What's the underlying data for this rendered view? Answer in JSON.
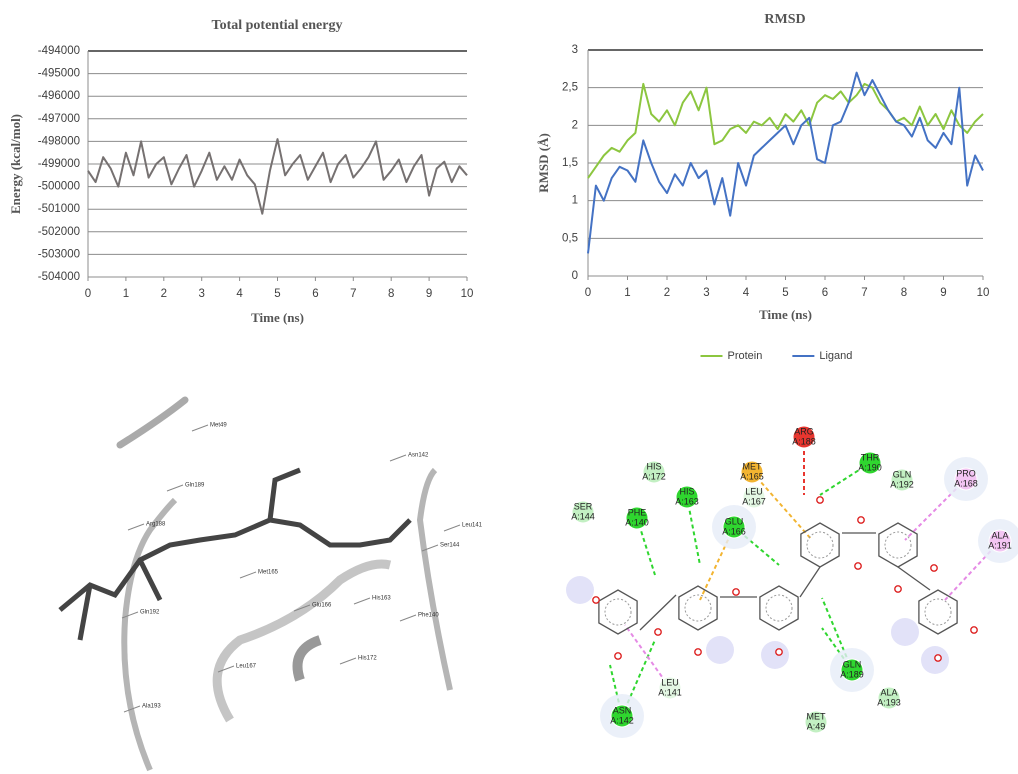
{
  "chart_data": [
    {
      "type": "line",
      "title": "Total potential energy",
      "xlabel": "Time (ns)",
      "ylabel": "Energy (kcal/mol)",
      "xlim": [
        0,
        10
      ],
      "xticks": [
        0,
        1,
        2,
        3,
        4,
        5,
        6,
        7,
        8,
        9,
        10
      ],
      "ylim": [
        -504000,
        -494000
      ],
      "yticks": [
        -504000,
        -503000,
        -502000,
        -501000,
        -500000,
        -499000,
        -498000,
        -497000,
        -496000,
        -495000,
        -494000
      ],
      "grid": true,
      "x": [
        0,
        0.2,
        0.4,
        0.6,
        0.8,
        1,
        1.2,
        1.4,
        1.6,
        1.8,
        2,
        2.2,
        2.4,
        2.6,
        2.8,
        3,
        3.2,
        3.4,
        3.6,
        3.8,
        4,
        4.2,
        4.4,
        4.6,
        4.8,
        5,
        5.2,
        5.4,
        5.6,
        5.8,
        6,
        6.2,
        6.4,
        6.6,
        6.8,
        7,
        7.2,
        7.4,
        7.6,
        7.8,
        8,
        8.2,
        8.4,
        8.6,
        8.8,
        9,
        9.2,
        9.4,
        9.6,
        9.8,
        10
      ],
      "series": [
        {
          "color": "#767171",
          "values": [
            -499300,
            -499800,
            -498700,
            -499200,
            -500000,
            -498500,
            -499500,
            -498000,
            -499600,
            -499000,
            -498700,
            -499900,
            -499200,
            -498600,
            -500000,
            -499300,
            -498500,
            -499700,
            -499100,
            -499700,
            -498800,
            -499500,
            -499900,
            -501200,
            -499300,
            -497900,
            -499500,
            -499000,
            -498600,
            -499700,
            -499100,
            -498500,
            -499800,
            -499000,
            -498600,
            -499600,
            -499200,
            -498700,
            -498000,
            -499700,
            -499300,
            -498800,
            -499800,
            -499100,
            -498600,
            -500400,
            -499200,
            -498900,
            -499800,
            -499100,
            -499500
          ]
        }
      ]
    },
    {
      "type": "line",
      "title": "RMSD",
      "xlabel": "Time (ns)",
      "ylabel": "RMSD (Å)",
      "xlim": [
        0,
        10
      ],
      "xticks": [
        0,
        1,
        2,
        3,
        4,
        5,
        6,
        7,
        8,
        9,
        10
      ],
      "ylim": [
        0,
        3
      ],
      "yticks": [
        0,
        {
          "value": 0.5,
          "label": "0,5"
        },
        1,
        {
          "value": 1.5,
          "label": "1,5"
        },
        2,
        {
          "value": 2.5,
          "label": "2,5"
        },
        3
      ],
      "grid": true,
      "legend": "bottom",
      "x": [
        0,
        0.2,
        0.4,
        0.6,
        0.8,
        1,
        1.2,
        1.4,
        1.6,
        1.8,
        2,
        2.2,
        2.4,
        2.6,
        2.8,
        3,
        3.2,
        3.4,
        3.6,
        3.8,
        4,
        4.2,
        4.4,
        4.6,
        4.8,
        5,
        5.2,
        5.4,
        5.6,
        5.8,
        6,
        6.2,
        6.4,
        6.6,
        6.8,
        7,
        7.2,
        7.4,
        7.6,
        7.8,
        8,
        8.2,
        8.4,
        8.6,
        8.8,
        9,
        9.2,
        9.4,
        9.6,
        9.8,
        10
      ],
      "series": [
        {
          "name": "Protein",
          "color": "#8cc63f",
          "values": [
            1.3,
            1.45,
            1.6,
            1.7,
            1.65,
            1.8,
            1.9,
            2.55,
            2.15,
            2.05,
            2.2,
            2.0,
            2.3,
            2.45,
            2.2,
            2.5,
            1.75,
            1.8,
            1.95,
            2.0,
            1.9,
            2.05,
            2.0,
            2.1,
            1.95,
            2.15,
            2.05,
            2.2,
            2.0,
            2.3,
            2.4,
            2.35,
            2.45,
            2.3,
            2.4,
            2.55,
            2.5,
            2.3,
            2.2,
            2.05,
            2.1,
            2.0,
            2.25,
            2.0,
            2.15,
            1.95,
            2.2,
            2.0,
            1.9,
            2.05,
            2.15
          ]
        },
        {
          "name": "Ligand",
          "color": "#4472c4",
          "values": [
            0.3,
            1.2,
            1.0,
            1.3,
            1.45,
            1.4,
            1.25,
            1.8,
            1.5,
            1.25,
            1.1,
            1.35,
            1.2,
            1.5,
            1.3,
            1.4,
            0.95,
            1.3,
            0.8,
            1.5,
            1.2,
            1.6,
            1.7,
            1.8,
            1.9,
            2.0,
            1.75,
            2.0,
            2.1,
            1.55,
            1.5,
            2.0,
            2.05,
            2.3,
            2.7,
            2.4,
            2.6,
            2.4,
            2.2,
            2.05,
            2.0,
            1.85,
            2.1,
            1.8,
            1.7,
            1.9,
            1.75,
            2.5,
            1.2,
            1.6,
            1.4
          ]
        }
      ]
    }
  ],
  "structure_view": {
    "labels": [
      "Met49",
      "Asn142",
      "Gln189",
      "Leu141",
      "Ser144",
      "Arg188",
      "Met165",
      "Glu166",
      "His163",
      "Gln192",
      "Phe140",
      "His172",
      "Leu167",
      "Ala193"
    ]
  },
  "interaction_diagram": {
    "residues": [
      {
        "name": "ARG",
        "id": "A:188",
        "color": "#e8362f"
      },
      {
        "name": "THR",
        "id": "A:190",
        "color": "#2fd62f"
      },
      {
        "name": "MET",
        "id": "A:165",
        "color": "#f2b431"
      },
      {
        "name": "HIS",
        "id": "A:172",
        "color": "#c3f0c3"
      },
      {
        "name": "GLN",
        "id": "A:192",
        "color": "#c3f0c3"
      },
      {
        "name": "PRO",
        "id": "A:168",
        "color": "#f3c5f3"
      },
      {
        "name": "LEU",
        "id": "A:167",
        "color": "#e3f7e3"
      },
      {
        "name": "HIS",
        "id": "A:163",
        "color": "#2fd62f"
      },
      {
        "name": "SER",
        "id": "A:144",
        "color": "#c3f0c3"
      },
      {
        "name": "PHE",
        "id": "A:140",
        "color": "#2fd62f"
      },
      {
        "name": "GLU",
        "id": "A:166",
        "color": "#2fd62f"
      },
      {
        "name": "ALA",
        "id": "A:191",
        "color": "#f3c5f3"
      },
      {
        "name": "GLN",
        "id": "A:189",
        "color": "#2fd62f"
      },
      {
        "name": "ASN",
        "id": "A:142",
        "color": "#2fd62f"
      },
      {
        "name": "LEU",
        "id": "A:141",
        "color": "#e3f7e3"
      },
      {
        "name": "ALA",
        "id": "A:193",
        "color": "#c3f0c3"
      },
      {
        "name": "MET",
        "id": "A:49",
        "color": "#c3f0c3"
      }
    ]
  }
}
